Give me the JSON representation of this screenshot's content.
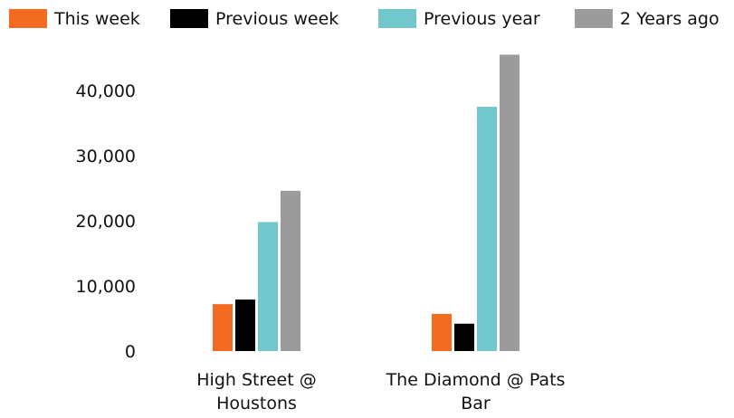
{
  "chart_data": {
    "type": "bar",
    "title": "",
    "xlabel": "",
    "ylabel": "",
    "ylim": [
      0,
      46000
    ],
    "yticks": [
      0,
      10000,
      20000,
      30000,
      40000
    ],
    "ytick_labels": [
      "0",
      "10,000",
      "20,000",
      "30,000",
      "40,000"
    ],
    "grid": false,
    "legend_position": "top",
    "categories": [
      {
        "line1": "High Street @",
        "line2": "Houstons"
      },
      {
        "line1": "The Diamond @ Pats",
        "line2": "Bar"
      }
    ],
    "series": [
      {
        "name": "This week",
        "color": "#f26b21",
        "values": [
          7200,
          5700
        ]
      },
      {
        "name": "Previous week",
        "color": "#000000",
        "values": [
          7900,
          4200
        ]
      },
      {
        "name": "Previous year",
        "color": "#72c7cc",
        "values": [
          19800,
          37500
        ]
      },
      {
        "name": "2 Years ago",
        "color": "#9b9b9b",
        "values": [
          24600,
          45500
        ]
      }
    ]
  }
}
